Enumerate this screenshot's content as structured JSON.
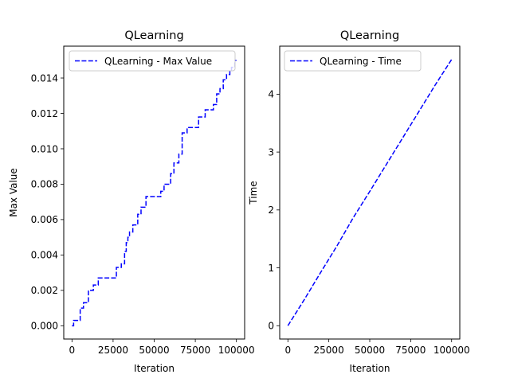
{
  "chart_data": [
    {
      "type": "line",
      "title": "QLearning",
      "xlabel": "Iteration",
      "ylabel": "Max Value",
      "xlim": [
        -5000,
        105000
      ],
      "ylim": [
        -0.00075,
        0.0158
      ],
      "xticks": [
        0,
        25000,
        50000,
        75000,
        100000
      ],
      "xtick_labels": [
        "0",
        "25000",
        "50000",
        "75000",
        "100000"
      ],
      "yticks": [
        0.0,
        0.002,
        0.004,
        0.006,
        0.008,
        0.01,
        0.012,
        0.014
      ],
      "ytick_labels": [
        "0.000",
        "0.002",
        "0.004",
        "0.006",
        "0.008",
        "0.010",
        "0.012",
        "0.014"
      ],
      "grid": false,
      "legend_position": "upper-left",
      "series": [
        {
          "name": "QLearning - Max Value",
          "color": "#0000ff",
          "style": "dashed",
          "x": [
            0,
            1000,
            1000,
            5000,
            5000,
            7000,
            7000,
            10000,
            10000,
            13000,
            13000,
            16000,
            16000,
            27000,
            27000,
            30000,
            30000,
            32000,
            32000,
            33000,
            33000,
            34000,
            34000,
            35000,
            35000,
            37000,
            37000,
            40000,
            40000,
            42000,
            42000,
            45000,
            45000,
            54000,
            54000,
            56000,
            56000,
            60000,
            60000,
            62000,
            62000,
            65000,
            65000,
            67000,
            67000,
            70000,
            70000,
            77000,
            77000,
            81000,
            81000,
            86000,
            86000,
            88000,
            88000,
            90000,
            90000,
            92000,
            92000,
            94000,
            94000,
            96000,
            96000,
            97000,
            97000,
            99000,
            99000,
            100000
          ],
          "y": [
            0.0,
            0.0,
            0.0003,
            0.0003,
            0.001,
            0.001,
            0.0013,
            0.0013,
            0.002,
            0.002,
            0.0023,
            0.0023,
            0.0027,
            0.0027,
            0.0033,
            0.0033,
            0.0035,
            0.0035,
            0.0042,
            0.0042,
            0.0047,
            0.0047,
            0.005,
            0.005,
            0.0053,
            0.0053,
            0.0057,
            0.0057,
            0.0063,
            0.0063,
            0.0067,
            0.0067,
            0.0073,
            0.0073,
            0.0076,
            0.0076,
            0.008,
            0.008,
            0.0086,
            0.0086,
            0.0092,
            0.0092,
            0.0097,
            0.0097,
            0.0109,
            0.0109,
            0.0112,
            0.0112,
            0.0118,
            0.0118,
            0.0122,
            0.0122,
            0.0125,
            0.0125,
            0.0131,
            0.0131,
            0.0134,
            0.0134,
            0.0139,
            0.0139,
            0.0142,
            0.0142,
            0.0144,
            0.0144,
            0.0146,
            0.0146,
            0.015,
            0.015
          ]
        }
      ]
    },
    {
      "type": "line",
      "title": "QLearning",
      "xlabel": "Iteration",
      "ylabel": "Time",
      "xlim": [
        -5000,
        105000
      ],
      "ylim": [
        -0.23,
        4.83
      ],
      "xticks": [
        0,
        25000,
        50000,
        75000,
        100000
      ],
      "xtick_labels": [
        "0",
        "25000",
        "50000",
        "75000",
        "100000"
      ],
      "yticks": [
        0,
        1,
        2,
        3,
        4
      ],
      "ytick_labels": [
        "0",
        "1",
        "2",
        "3",
        "4"
      ],
      "grid": false,
      "legend_position": "upper-left",
      "series": [
        {
          "name": "QLearning - Time",
          "color": "#0000ff",
          "style": "dashed",
          "x": [
            0,
            10000,
            20000,
            30000,
            40000,
            50000,
            60000,
            70000,
            80000,
            90000,
            100000
          ],
          "y": [
            0.0,
            0.45,
            0.92,
            1.38,
            1.87,
            2.32,
            2.78,
            3.24,
            3.7,
            4.16,
            4.6
          ]
        }
      ]
    }
  ]
}
